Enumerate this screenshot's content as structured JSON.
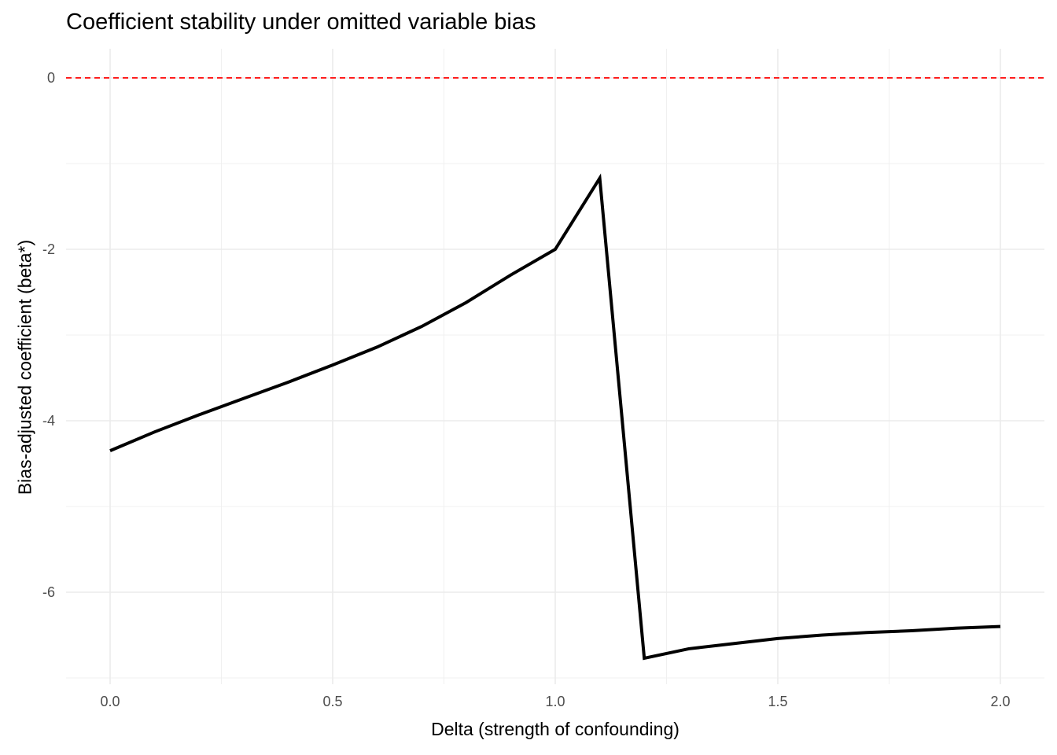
{
  "chart_data": {
    "type": "line",
    "title": "Coefficient stability under omitted variable bias",
    "xlabel": "Delta (strength of confounding)",
    "ylabel": "Bias-adjusted coefficient (beta*)",
    "x": [
      0.0,
      0.1,
      0.2,
      0.3,
      0.4,
      0.5,
      0.6,
      0.7,
      0.8,
      0.9,
      1.0,
      1.1,
      1.2,
      1.3,
      1.4,
      1.5,
      1.6,
      1.7,
      1.8,
      1.9,
      2.0
    ],
    "series": [
      {
        "name": "beta*",
        "color": "#000000",
        "values": [
          -4.35,
          -4.13,
          -3.93,
          -3.74,
          -3.55,
          -3.35,
          -3.14,
          -2.9,
          -2.62,
          -2.3,
          -2.0,
          -1.17,
          -6.77,
          -6.66,
          -6.6,
          -6.54,
          -6.5,
          -6.47,
          -6.45,
          -6.42,
          -6.4
        ]
      }
    ],
    "reference_line": {
      "y": 0,
      "color": "#ff0000",
      "style": "dashed"
    },
    "xticks": [
      "0.0",
      "0.5",
      "1.0",
      "1.5",
      "2.0"
    ],
    "yticks": [
      "0",
      "-2",
      "-4",
      "-6"
    ],
    "xlim": [
      -0.1,
      2.1
    ],
    "ylim": [
      -7.0,
      0.35
    ],
    "grid": true,
    "legend": "none"
  }
}
